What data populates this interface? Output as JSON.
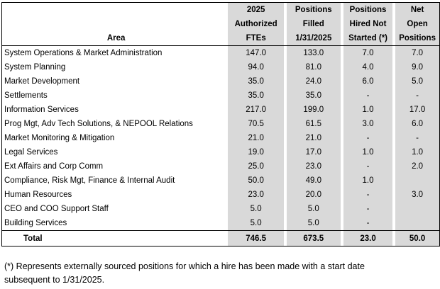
{
  "columns": {
    "area": "Area",
    "authorized": [
      "2025",
      "Authorized",
      "FTEs"
    ],
    "filled": [
      "Positions",
      "Filled",
      "1/31/2025"
    ],
    "hired": [
      "Positions",
      "Hired Not",
      "Started (*)"
    ],
    "net": [
      "Net",
      "Open",
      "Positions"
    ]
  },
  "rows": [
    {
      "area": "System Operations & Market Administration",
      "authorized": "147.0",
      "filled": "133.0",
      "hired": "7.0",
      "net": "7.0"
    },
    {
      "area": "System Planning",
      "authorized": "94.0",
      "filled": "81.0",
      "hired": "4.0",
      "net": "9.0"
    },
    {
      "area": "Market Development",
      "authorized": "35.0",
      "filled": "24.0",
      "hired": "6.0",
      "net": "5.0"
    },
    {
      "area": "Settlements",
      "authorized": "35.0",
      "filled": "35.0",
      "hired": "-",
      "net": "-"
    },
    {
      "area": "Information Services",
      "authorized": "217.0",
      "filled": "199.0",
      "hired": "1.0",
      "net": "17.0"
    },
    {
      "area": "Prog Mgt, Adv Tech Solutions, & NEPOOL Relations",
      "authorized": "70.5",
      "filled": "61.5",
      "hired": "3.0",
      "net": "6.0"
    },
    {
      "area": "Market Monitoring & Mitigation",
      "authorized": "21.0",
      "filled": "21.0",
      "hired": "-",
      "net": "-"
    },
    {
      "area": "Legal Services",
      "authorized": "19.0",
      "filled": "17.0",
      "hired": "1.0",
      "net": "1.0"
    },
    {
      "area": "Ext Affairs and Corp Comm",
      "authorized": "25.0",
      "filled": "23.0",
      "hired": "-",
      "net": "2.0"
    },
    {
      "area": "Compliance, Risk Mgt, Finance & Internal Audit",
      "authorized": "50.0",
      "filled": "49.0",
      "hired": "1.0",
      "net": ""
    },
    {
      "area": "Human Resources",
      "authorized": "23.0",
      "filled": "20.0",
      "hired": "-",
      "net": "3.0"
    },
    {
      "area": "CEO and COO Support Staff",
      "authorized": "5.0",
      "filled": "5.0",
      "hired": "-",
      "net": ""
    },
    {
      "area": "Building Services",
      "authorized": "5.0",
      "filled": "5.0",
      "hired": "-",
      "net": ""
    }
  ],
  "total": {
    "area": "Total",
    "authorized": "746.5",
    "filled": "673.5",
    "hired": "23.0",
    "net": "50.0"
  },
  "footnote": [
    "(*) Represents externally sourced positions for which a hire has been made with a start date",
    "subsequent to 1/31/2025."
  ]
}
